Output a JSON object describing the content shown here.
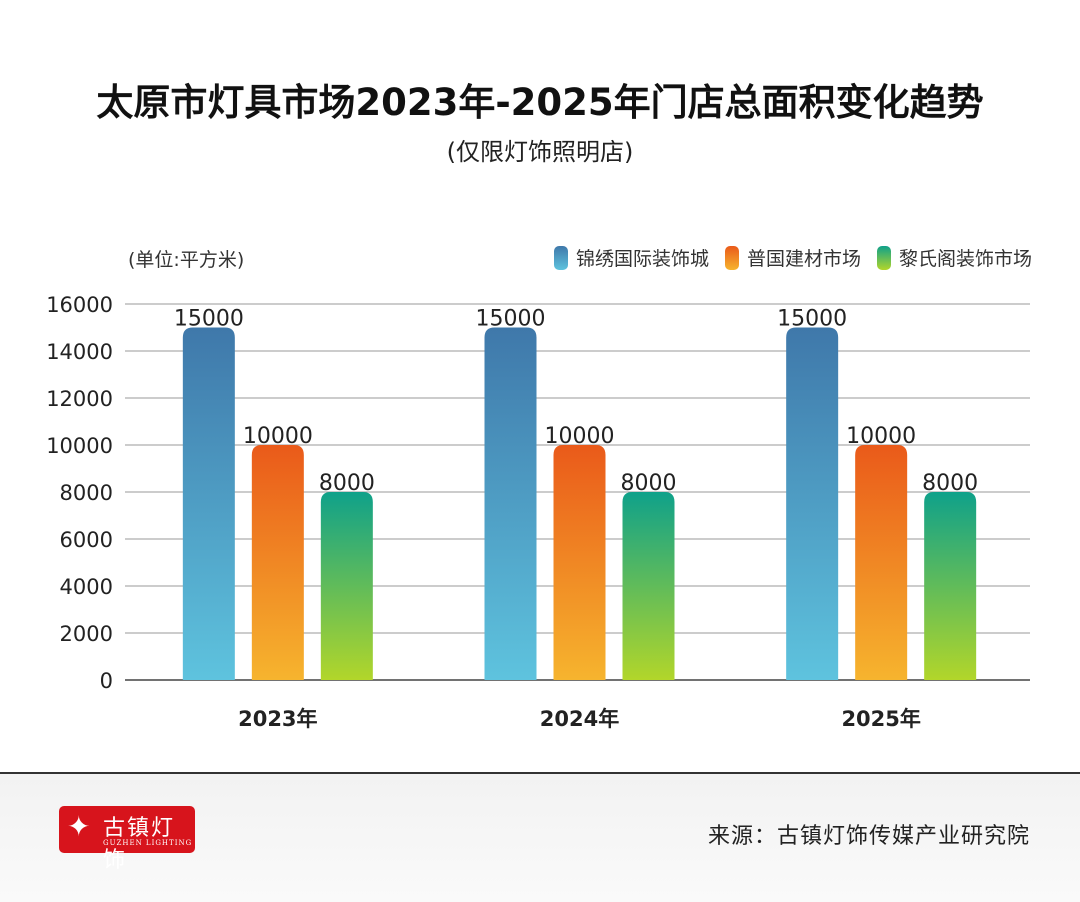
{
  "title": "太原市灯具市场2023年-2025年门店总面积变化趋势",
  "subtitle": "(仅限灯饰照明店)",
  "chart_data": {
    "type": "bar",
    "unit_label": "(单位:平方米)",
    "categories": [
      "2023年",
      "2024年",
      "2025年"
    ],
    "series": [
      {
        "name": "锦绣国际装饰城",
        "values": [
          15000,
          15000,
          15000
        ],
        "color_top": "#3f78aa",
        "color_bottom": "#5ec3de"
      },
      {
        "name": "普国建材市场",
        "values": [
          10000,
          10000,
          10000
        ],
        "color_top": "#ea5a1a",
        "color_bottom": "#f6b42e"
      },
      {
        "name": "黎氏阁装饰市场",
        "values": [
          8000,
          8000,
          8000
        ],
        "color_top": "#0fa18a",
        "color_bottom": "#b2d62a"
      }
    ],
    "ylim": [
      0,
      16000
    ],
    "yticks": [
      "0",
      "2000",
      "4000",
      "6000",
      "8000",
      "10000",
      "12000",
      "14000",
      "16000"
    ],
    "grid": true,
    "legend": "top-right",
    "data_labels": [
      "15000",
      "10000",
      "8000"
    ]
  },
  "footer": {
    "logo_text": "古镇灯饰",
    "logo_sub": "GUZHEN LIGHTING",
    "source": "来源：古镇灯饰传媒产业研究院"
  }
}
